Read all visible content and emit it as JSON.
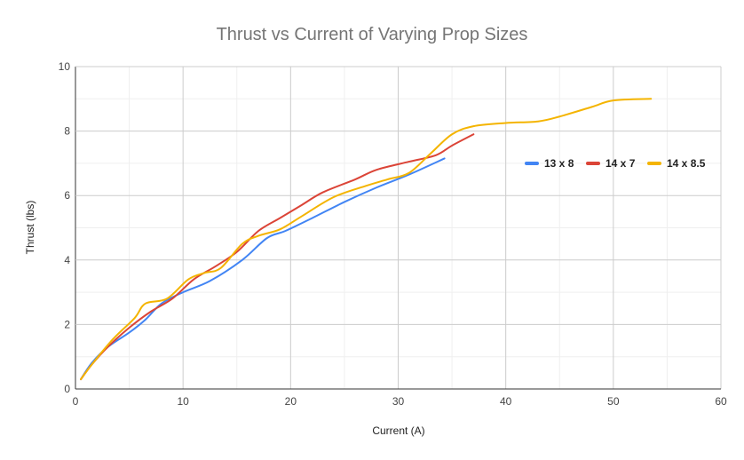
{
  "chart_data": {
    "type": "line",
    "title": "Thrust vs Current of Varying Prop Sizes",
    "xlabel": "Current (A)",
    "ylabel": "Thrust (lbs)",
    "xlim": [
      0,
      60
    ],
    "ylim": [
      0,
      10
    ],
    "x_ticks": [
      0,
      10,
      20,
      30,
      40,
      50,
      60
    ],
    "y_ticks": [
      0,
      2,
      4,
      6,
      8,
      10
    ],
    "grid": true,
    "legend_position": "right",
    "series": [
      {
        "name": "13 x 8",
        "color": "#4285F4",
        "points": [
          [
            0.5,
            0.3
          ],
          [
            1.5,
            0.8
          ],
          [
            3,
            1.3
          ],
          [
            5,
            1.75
          ],
          [
            6.5,
            2.15
          ],
          [
            8,
            2.65
          ],
          [
            10,
            3.0
          ],
          [
            12.5,
            3.35
          ],
          [
            15.5,
            4.0
          ],
          [
            17.8,
            4.68
          ],
          [
            19.5,
            4.9
          ],
          [
            22,
            5.3
          ],
          [
            25,
            5.8
          ],
          [
            28,
            6.25
          ],
          [
            31,
            6.65
          ],
          [
            34.3,
            7.15
          ]
        ]
      },
      {
        "name": "14 x 7",
        "color": "#DB4437",
        "points": [
          [
            0.5,
            0.3
          ],
          [
            1.5,
            0.75
          ],
          [
            3,
            1.3
          ],
          [
            5,
            1.9
          ],
          [
            7,
            2.4
          ],
          [
            9,
            2.8
          ],
          [
            11,
            3.4
          ],
          [
            13,
            3.8
          ],
          [
            15,
            4.25
          ],
          [
            17,
            4.9
          ],
          [
            19,
            5.3
          ],
          [
            21,
            5.7
          ],
          [
            23,
            6.1
          ],
          [
            26,
            6.5
          ],
          [
            28,
            6.8
          ],
          [
            31,
            7.05
          ],
          [
            33.5,
            7.25
          ],
          [
            35,
            7.55
          ],
          [
            37,
            7.9
          ]
        ]
      },
      {
        "name": "14 x 8.5",
        "color": "#F4B400",
        "points": [
          [
            0.5,
            0.3
          ],
          [
            1.5,
            0.75
          ],
          [
            3.5,
            1.55
          ],
          [
            5.5,
            2.2
          ],
          [
            6.5,
            2.65
          ],
          [
            8.5,
            2.8
          ],
          [
            10.5,
            3.4
          ],
          [
            12,
            3.6
          ],
          [
            13.5,
            3.75
          ],
          [
            15.5,
            4.5
          ],
          [
            17,
            4.75
          ],
          [
            19,
            4.95
          ],
          [
            21,
            5.35
          ],
          [
            24,
            5.95
          ],
          [
            27,
            6.3
          ],
          [
            29,
            6.5
          ],
          [
            31,
            6.7
          ],
          [
            33,
            7.3
          ],
          [
            35,
            7.9
          ],
          [
            37,
            8.15
          ],
          [
            40,
            8.25
          ],
          [
            43,
            8.3
          ],
          [
            45,
            8.45
          ],
          [
            48,
            8.75
          ],
          [
            50,
            8.95
          ],
          [
            53.5,
            9.0
          ]
        ]
      }
    ]
  }
}
